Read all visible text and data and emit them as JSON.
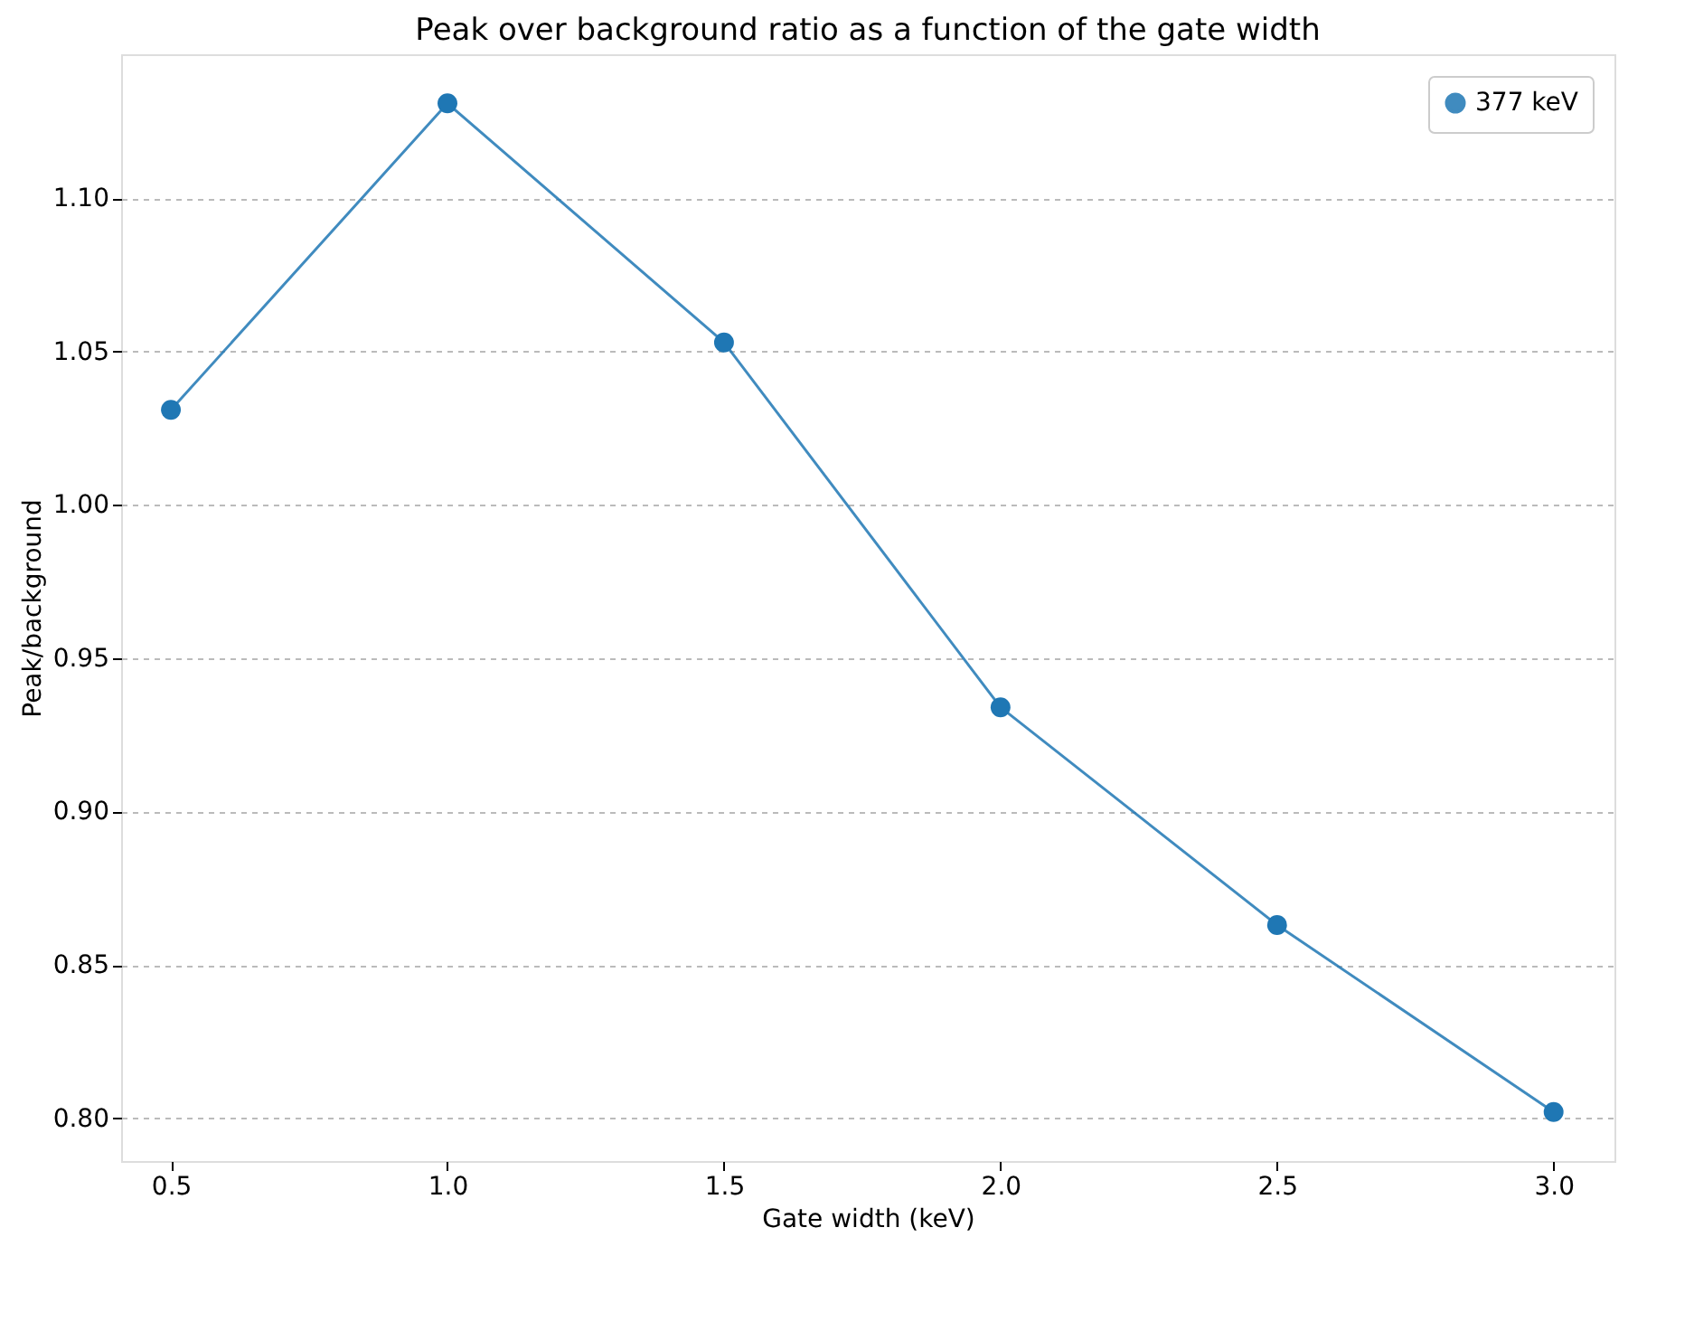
{
  "chart_data": {
    "type": "line",
    "title": "Peak over background ratio as a function of the gate width",
    "xlabel": "Gate width (keV)",
    "ylabel": "Peak/background",
    "x": [
      0.5,
      1.0,
      1.5,
      2.0,
      2.5,
      3.0
    ],
    "series": [
      {
        "name": "377 keV",
        "color": "#1f77b4",
        "values": [
          1.031,
          1.131,
          1.053,
          0.934,
          0.863,
          0.802
        ]
      }
    ],
    "xlim": [
      0.41,
      3.11
    ],
    "xticks": [
      {
        "value": 0.5,
        "label": "0.5"
      },
      {
        "value": 1.0,
        "label": "1.0"
      },
      {
        "value": 1.5,
        "label": "1.5"
      },
      {
        "value": 2.0,
        "label": "2.0"
      },
      {
        "value": 2.5,
        "label": "2.5"
      },
      {
        "value": 3.0,
        "label": "3.0"
      }
    ],
    "ylim": [
      0.786,
      1.147
    ],
    "yticks": [
      {
        "value": 0.8,
        "label": "0.80"
      },
      {
        "value": 0.85,
        "label": "0.85"
      },
      {
        "value": 0.9,
        "label": "0.90"
      },
      {
        "value": 0.95,
        "label": "0.95"
      },
      {
        "value": 1.0,
        "label": "1.00"
      },
      {
        "value": 1.05,
        "label": "1.05"
      },
      {
        "value": 1.1,
        "label": "1.10"
      }
    ],
    "grid": "y",
    "legend": "top right",
    "marker": "circle",
    "line_style": "solid"
  }
}
